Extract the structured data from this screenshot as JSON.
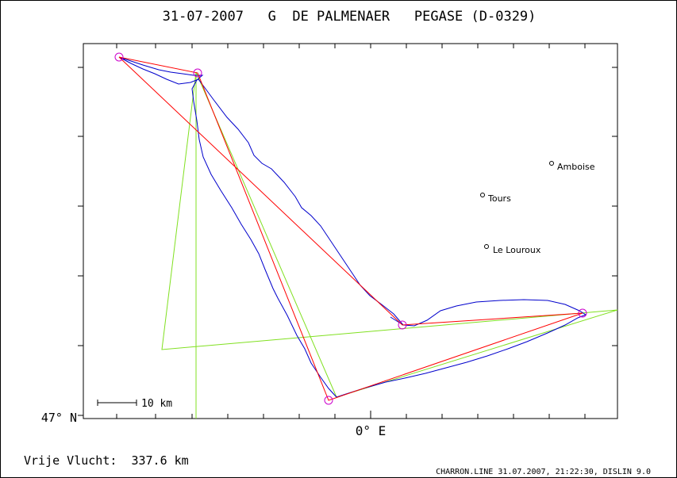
{
  "header": {
    "title": "31-07-2007   G  DE PALMENAER   PEGASE (D-0329)"
  },
  "axes": {
    "y_label": "47° N",
    "x_label": "0° E"
  },
  "scale_bar": {
    "label": "10 km"
  },
  "places": [
    {
      "name": "Amboise"
    },
    {
      "name": "Tours"
    },
    {
      "name": "Le Louroux"
    }
  ],
  "footer": {
    "distance": "Vrije Vlucht:  337.6 km",
    "credit": "CHARRON.LINE 31.07.2007, 21:22:30, DISLIN 9.0"
  },
  "colors": {
    "track": "#0000cc",
    "optimized_route": "#ff0000",
    "declared_route": "#80e020",
    "turnpoint": "#cc00cc"
  }
}
